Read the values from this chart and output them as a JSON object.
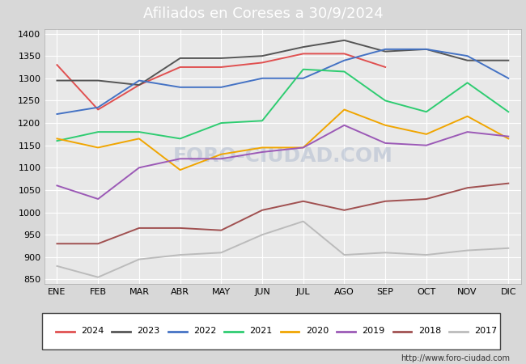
{
  "title": "Afiliados en Coreses a 30/9/2024",
  "title_bg": "#4f7dc9",
  "title_color": "white",
  "months": [
    "ENE",
    "FEB",
    "MAR",
    "ABR",
    "MAY",
    "JUN",
    "JUL",
    "AGO",
    "SEP",
    "OCT",
    "NOV",
    "DIC"
  ],
  "ylim": [
    840,
    1410
  ],
  "yticks": [
    850,
    900,
    950,
    1000,
    1050,
    1100,
    1150,
    1200,
    1250,
    1300,
    1350,
    1400
  ],
  "series": {
    "2024": {
      "color": "#e05050",
      "data": [
        1330,
        1230,
        1285,
        1325,
        1325,
        1335,
        1355,
        1355,
        1325,
        null,
        null,
        null
      ]
    },
    "2023": {
      "color": "#555555",
      "data": [
        1295,
        1295,
        1285,
        1345,
        1345,
        1350,
        1370,
        1385,
        1360,
        1365,
        1340,
        1340
      ]
    },
    "2022": {
      "color": "#4472c4",
      "data": [
        1220,
        1235,
        1295,
        1280,
        1280,
        1300,
        1300,
        1340,
        1365,
        1365,
        1350,
        1300
      ]
    },
    "2021": {
      "color": "#2ecc71",
      "data": [
        1160,
        1180,
        1180,
        1165,
        1200,
        1205,
        1320,
        1315,
        1250,
        1225,
        1290,
        1225
      ]
    },
    "2020": {
      "color": "#f0a500",
      "data": [
        1165,
        1145,
        1165,
        1095,
        1130,
        1145,
        1145,
        1230,
        1195,
        1175,
        1215,
        1165
      ]
    },
    "2019": {
      "color": "#9b59b6",
      "data": [
        1060,
        1030,
        1100,
        1120,
        1120,
        1135,
        1145,
        1195,
        1155,
        1150,
        1180,
        1170
      ]
    },
    "2018": {
      "color": "#a05050",
      "data": [
        930,
        930,
        965,
        965,
        960,
        1005,
        1025,
        1005,
        1025,
        1030,
        1055,
        1065
      ]
    },
    "2017": {
      "color": "#bbbbbb",
      "data": [
        880,
        855,
        895,
        905,
        910,
        950,
        980,
        905,
        910,
        905,
        915,
        920
      ]
    }
  },
  "legend_order": [
    "2024",
    "2023",
    "2022",
    "2021",
    "2020",
    "2019",
    "2018",
    "2017"
  ],
  "watermark": "FORO-CIUDAD.COM",
  "url": "http://www.foro-ciudad.com",
  "fig_bg_color": "#d8d8d8",
  "plot_bg_color": "#e8e8e8",
  "grid_color": "#ffffff"
}
